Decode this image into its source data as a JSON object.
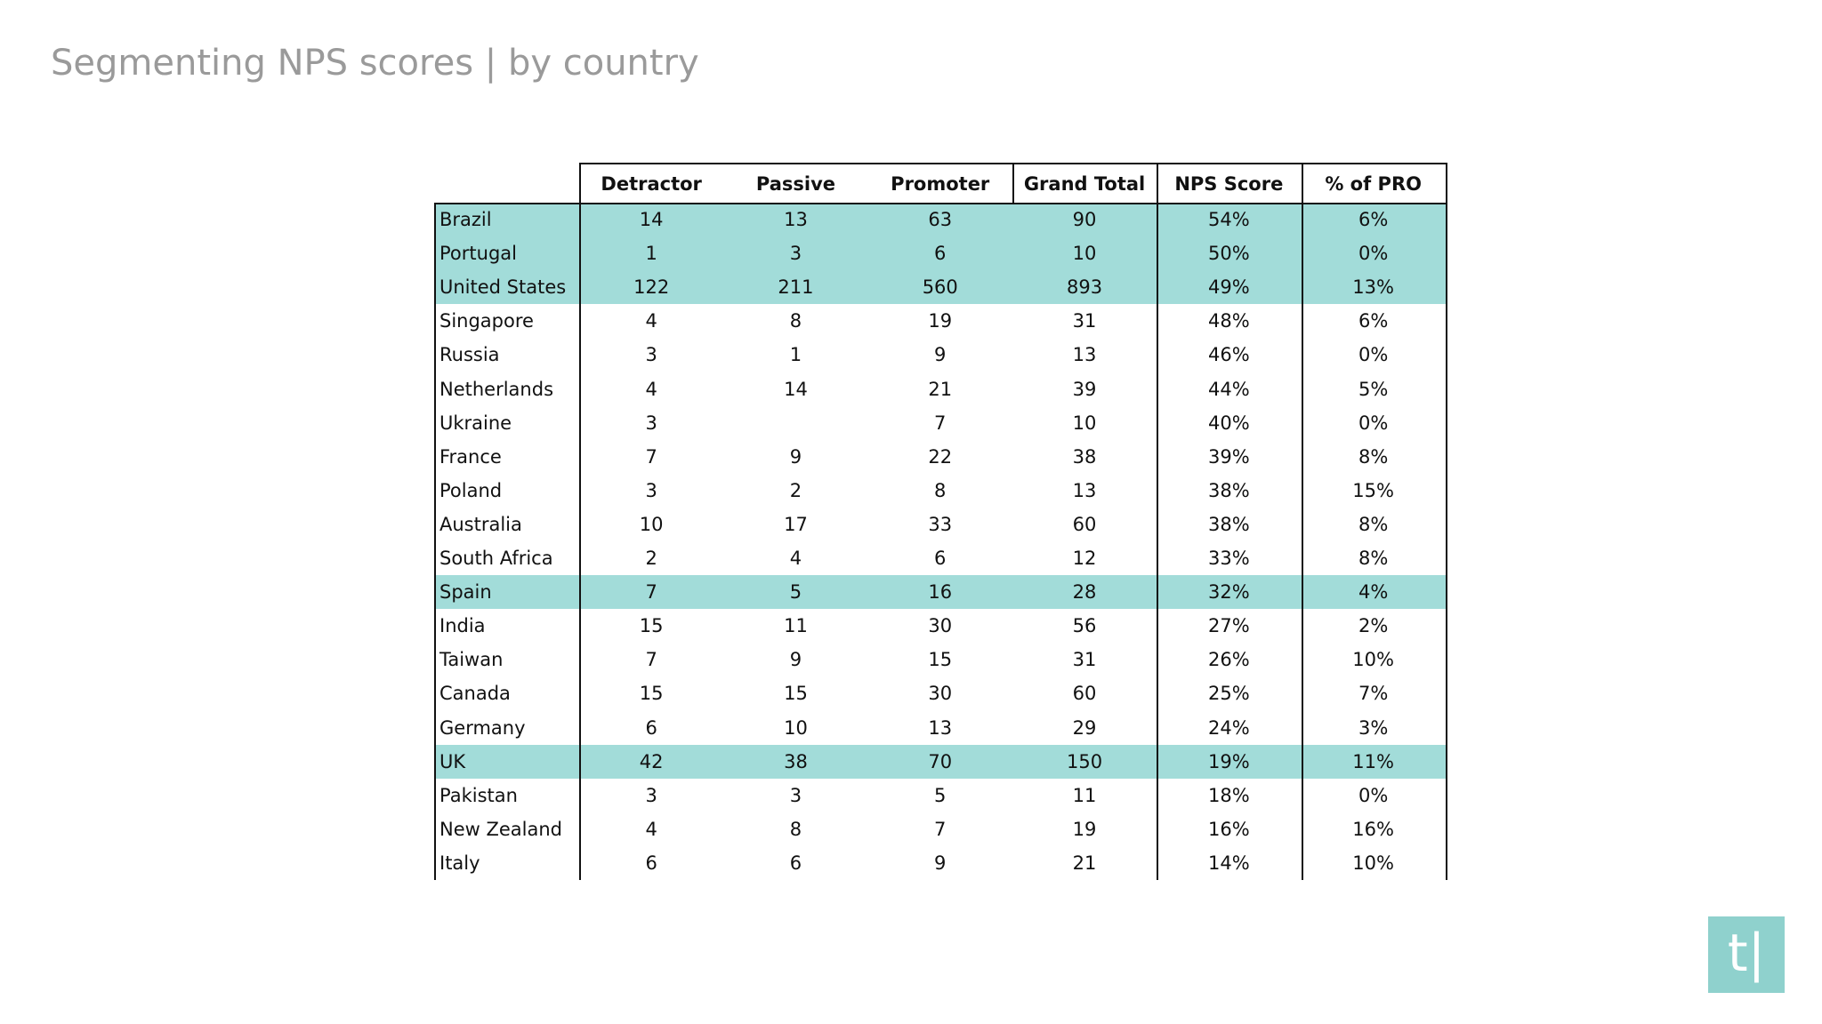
{
  "header": {
    "title": "Segmenting NPS scores | by country"
  },
  "table": {
    "columns": [
      "Detractor",
      "Passive",
      "Promoter",
      "Grand Total",
      "NPS Score",
      "% of PRO"
    ],
    "highlight_color": "#a2dcd9",
    "highlight_rows": [
      0,
      1,
      2,
      11,
      16
    ],
    "rows": [
      [
        "Brazil",
        14,
        13,
        63,
        90,
        "54%",
        "6%"
      ],
      [
        "Portugal",
        1,
        3,
        6,
        10,
        "50%",
        "0%"
      ],
      [
        "United States",
        122,
        211,
        560,
        893,
        "49%",
        "13%"
      ],
      [
        "Singapore",
        4,
        8,
        19,
        31,
        "48%",
        "6%"
      ],
      [
        "Russia",
        3,
        1,
        9,
        13,
        "46%",
        "0%"
      ],
      [
        "Netherlands",
        4,
        14,
        21,
        39,
        "44%",
        "5%"
      ],
      [
        "Ukraine",
        3,
        null,
        7,
        10,
        "40%",
        "0%"
      ],
      [
        "France",
        7,
        9,
        22,
        38,
        "39%",
        "8%"
      ],
      [
        "Poland",
        3,
        2,
        8,
        13,
        "38%",
        "15%"
      ],
      [
        "Australia",
        10,
        17,
        33,
        60,
        "38%",
        "8%"
      ],
      [
        "South Africa",
        2,
        4,
        6,
        12,
        "33%",
        "8%"
      ],
      [
        "Spain",
        7,
        5,
        16,
        28,
        "32%",
        "4%"
      ],
      [
        "India",
        15,
        11,
        30,
        56,
        "27%",
        "2%"
      ],
      [
        "Taiwan",
        7,
        9,
        15,
        31,
        "26%",
        "10%"
      ],
      [
        "Canada",
        15,
        15,
        30,
        60,
        "25%",
        "7%"
      ],
      [
        "Germany",
        6,
        10,
        13,
        29,
        "24%",
        "3%"
      ],
      [
        "UK",
        42,
        38,
        70,
        150,
        "19%",
        "11%"
      ],
      [
        "Pakistan",
        3,
        3,
        5,
        11,
        "18%",
        "0%"
      ],
      [
        "New Zealand",
        4,
        8,
        7,
        19,
        "16%",
        "16%"
      ],
      [
        "Italy",
        6,
        6,
        9,
        21,
        "14%",
        "10%"
      ]
    ]
  },
  "logo": {
    "text": "t|"
  }
}
